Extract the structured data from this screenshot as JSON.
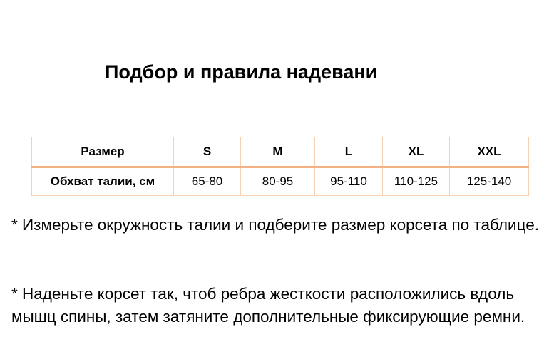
{
  "title": "Подбор и правила надевани",
  "table": {
    "header": [
      "Размер",
      "S",
      "M",
      "L",
      "XL",
      "XXL"
    ],
    "row": [
      "Обхват талии, см",
      "65-80",
      "80-95",
      "95-110",
      "110-125",
      "125-140"
    ]
  },
  "paragraphs": [
    "* Измерьте окружность талии и подберите размер корсета по таблице.",
    "* Наденьте корсет так, чтоб ребра жесткости расположились вдоль мышц спины, затем затяните дополнительные фиксирующие ремни."
  ]
}
